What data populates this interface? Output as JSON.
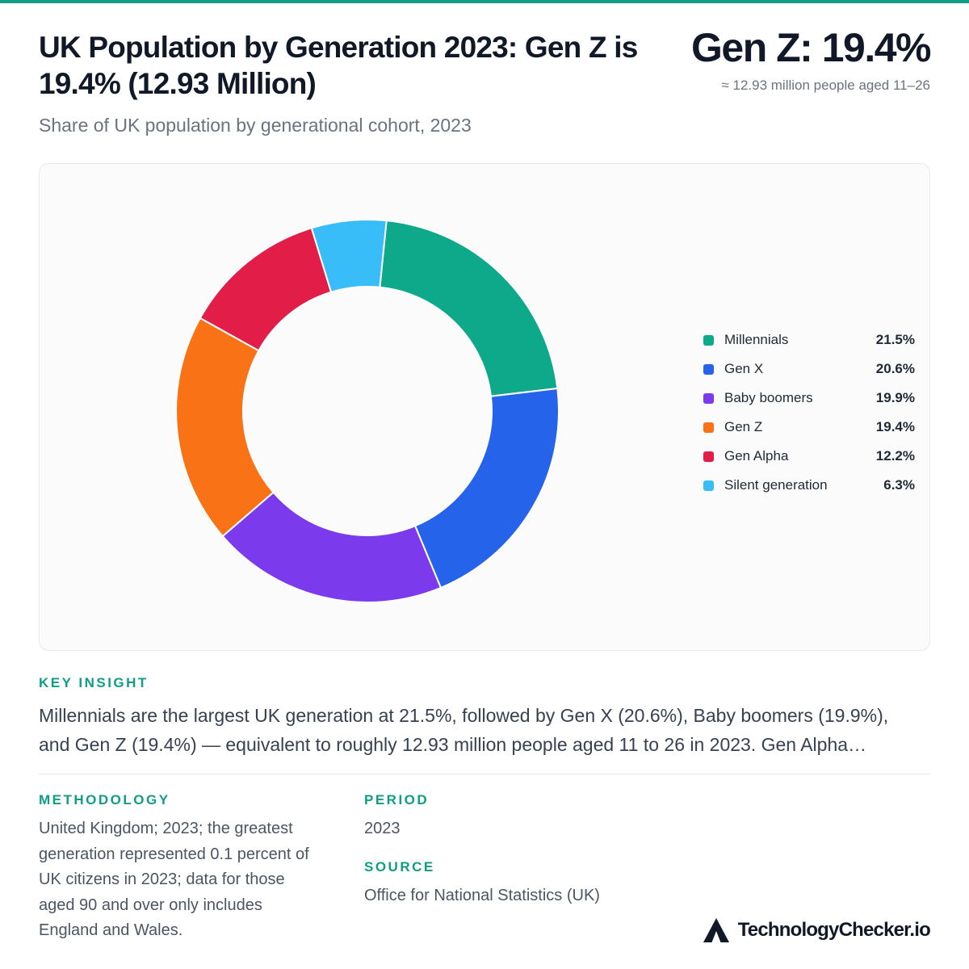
{
  "header": {
    "title": "UK Population by Generation 2023: Gen Z is 19.4% (12.93 Million)",
    "subtitle": "Share of UK population by generational cohort, 2023",
    "headline": "Gen Z: 19.4%",
    "headline_sub": "≈ 12.93 million people aged 11–26"
  },
  "chart_data": {
    "type": "pie",
    "donut": true,
    "categories": [
      "Millennials",
      "Gen X",
      "Baby boomers",
      "Gen Z",
      "Gen Alpha",
      "Silent generation"
    ],
    "values": [
      21.5,
      20.6,
      19.9,
      19.4,
      12.2,
      6.3
    ],
    "value_labels": [
      "21.5%",
      "20.6%",
      "19.9%",
      "19.4%",
      "12.2%",
      "6.3%"
    ],
    "colors": [
      "#0ea88a",
      "#2563eb",
      "#7c3aed",
      "#f97316",
      "#e11d48",
      "#38bdf8"
    ],
    "legend_position": "right"
  },
  "insight": {
    "label": "KEY INSIGHT",
    "line1": "Millennials are the largest UK generation at 21.5%, followed by Gen X (20.6%), Baby boomers (19.9%),",
    "line2": "and Gen Z (19.4%) — equivalent to roughly 12.93 million people aged 11 to 26 in 2023. Gen Alpha…"
  },
  "methodology": {
    "label": "METHODOLOGY",
    "lines": [
      "United Kingdom; 2023; the greatest",
      "generation represented 0.1 percent of",
      "UK citizens in 2023; data for those",
      "aged 90 and over only includes",
      "England and Wales."
    ]
  },
  "period": {
    "label": "PERIOD",
    "value": "2023"
  },
  "source": {
    "label": "SOURCE",
    "value": "Office for National Statistics (UK)"
  },
  "brand": {
    "name": "TechnologyChecker.io"
  }
}
